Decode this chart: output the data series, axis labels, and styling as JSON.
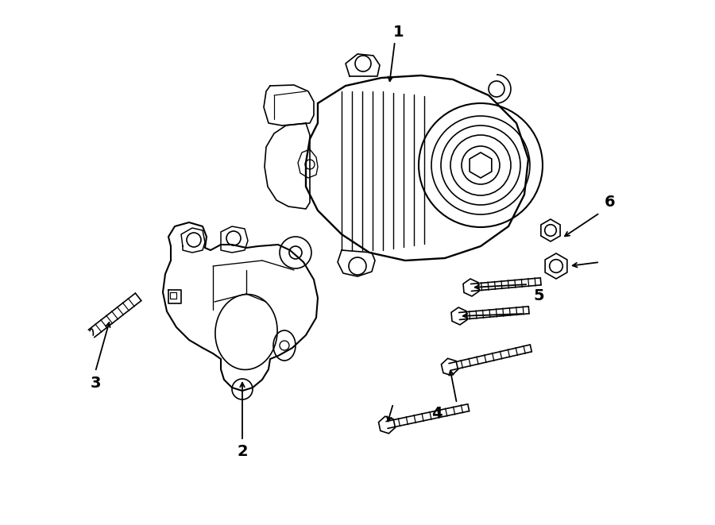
{
  "background_color": "#ffffff",
  "line_color": "#000000",
  "lw": 1.2,
  "fig_width": 9.0,
  "fig_height": 6.61,
  "dpi": 100,
  "font_size": 14
}
